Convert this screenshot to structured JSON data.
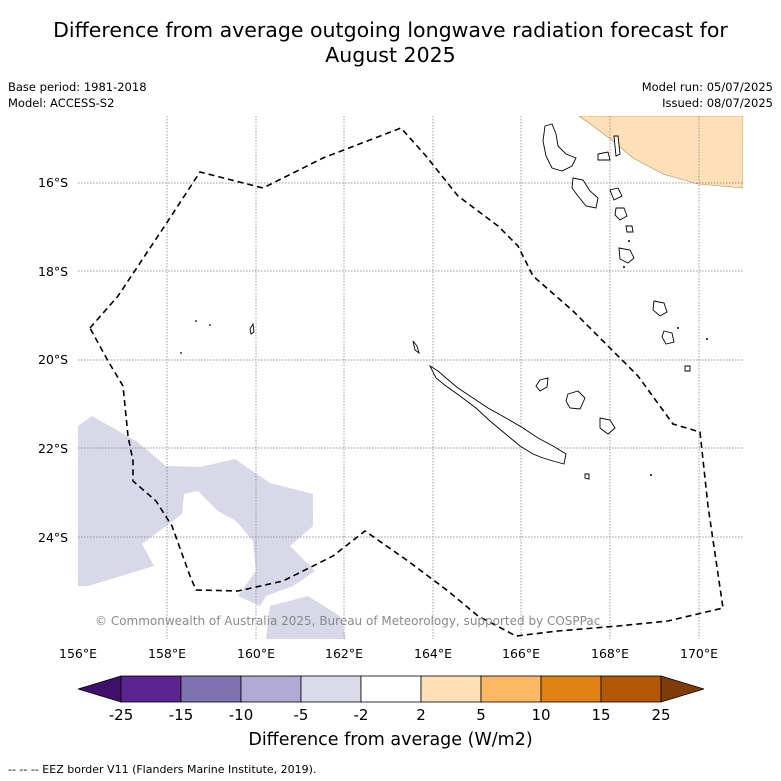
{
  "header": {
    "title_line1": "Difference from average outgoing longwave radiation forecast for",
    "title_line2": "August 2025",
    "base_period": "Base period: 1981-2018",
    "model": "Model: ACCESS-S2",
    "model_run": "Model run: 05/07/2025",
    "issued": "Issued: 08/07/2025"
  },
  "axes": {
    "lat_labels": [
      "16°S",
      "18°S",
      "20°S",
      "22°S",
      "24°S"
    ],
    "lon_labels": [
      "156°E",
      "158°E",
      "160°E",
      "162°E",
      "164°E",
      "166°E",
      "168°E",
      "170°E"
    ],
    "lon_range": [
      156,
      171
    ],
    "lat_range": [
      -14.8,
      -26.6
    ]
  },
  "colorbar": {
    "tick_labels": [
      "-25",
      "-15",
      "-10",
      "-5",
      "-2",
      "2",
      "5",
      "10",
      "15",
      "25"
    ],
    "colors": [
      "#3f0f6b",
      "#5a2590",
      "#7e72b0",
      "#b1aad4",
      "#dadaeb",
      "#ffffff",
      "#fee0b6",
      "#fdb863",
      "#e08214",
      "#b35806",
      "#7f3b08"
    ],
    "label": "Difference from average (W/m2)"
  },
  "map": {
    "copyright": "© Commonwealth of Australia 2025, Bureau of Meteorology, supported by COSPPac",
    "negative_fill": "#d8d8e9",
    "positive_fill": "#fde0b8"
  },
  "footer": {
    "legend": "--  --  -- EEZ border V11 (Flanders Marine Institute, 2019)."
  }
}
